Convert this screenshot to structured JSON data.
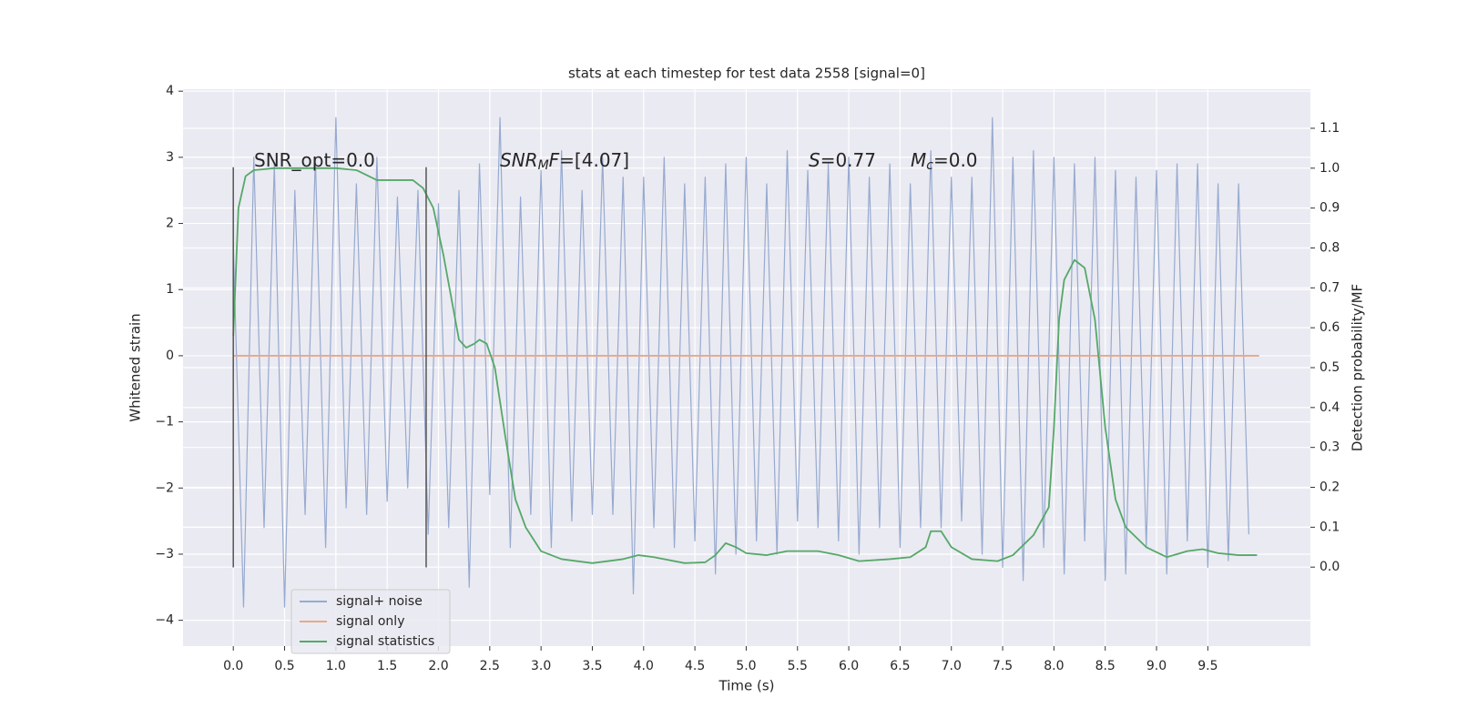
{
  "chart_data": {
    "type": "line",
    "title": "stats at each timestep for test data 2558 [signal=0]",
    "xlabel": "Time (s)",
    "ylabel": "Whitened strain",
    "y2label": "Detection probability/MF",
    "xlim": [
      -0.49,
      10.5
    ],
    "ylim": [
      -4.39,
      4.03
    ],
    "y2lim": [
      -0.198,
      1.198
    ],
    "xticks": [
      {
        "value": 0,
        "label": "0.0"
      },
      0.5,
      {
        "value": 1,
        "label": "1.0"
      },
      1.5,
      {
        "value": 2,
        "label": "2.0"
      },
      2.5,
      {
        "value": 3,
        "label": "3.0"
      },
      3.5,
      {
        "value": 4,
        "label": "4.0"
      },
      4.5,
      {
        "value": 5,
        "label": "5.0"
      },
      5.5,
      {
        "value": 6,
        "label": "6.0"
      },
      6.5,
      {
        "value": 7,
        "label": "7.0"
      },
      7.5,
      {
        "value": 8,
        "label": "8.0"
      },
      8.5,
      {
        "value": 9,
        "label": "9.0"
      },
      9.5
    ],
    "yticks": [
      {
        "value": -4,
        "label": "−4"
      },
      {
        "value": -3,
        "label": "−3"
      },
      {
        "value": -2,
        "label": "−2"
      },
      {
        "value": -1,
        "label": "−1"
      },
      0,
      1,
      2,
      3,
      4
    ],
    "y2ticks": [
      {
        "value": 0,
        "label": "0.0"
      },
      0.1,
      0.2,
      0.3,
      0.4,
      0.5,
      0.6,
      0.7,
      0.8,
      0.9,
      {
        "value": 1,
        "label": "1.0"
      },
      1.1
    ],
    "grid": true,
    "legend": "lower left",
    "series": [
      {
        "name": "signal+ noise",
        "color": "#97aad0",
        "x": [
          0,
          0.1,
          0.2,
          0.3,
          0.4,
          0.5,
          0.6,
          0.7,
          0.8,
          0.9,
          1,
          1.1,
          1.2,
          1.3,
          1.4,
          1.5,
          1.6,
          1.7,
          1.8,
          1.9,
          2,
          2.1,
          2.2,
          2.3,
          2.4,
          2.5,
          2.6,
          2.7,
          2.8,
          2.9,
          3,
          3.1,
          3.2,
          3.3,
          3.4,
          3.5,
          3.6,
          3.7,
          3.8,
          3.9,
          4,
          4.1,
          4.2,
          4.3,
          4.4,
          4.5,
          4.6,
          4.7,
          4.8,
          4.9,
          5,
          5.1,
          5.2,
          5.3,
          5.4,
          5.5,
          5.6,
          5.7,
          5.8,
          5.9,
          6,
          6.1,
          6.2,
          6.3,
          6.4,
          6.5,
          6.6,
          6.7,
          6.8,
          6.9,
          7,
          7.1,
          7.2,
          7.3,
          7.4,
          7.5,
          7.6,
          7.7,
          7.8,
          7.9,
          8,
          8.1,
          8.2,
          8.3,
          8.4,
          8.5,
          8.6,
          8.7,
          8.8,
          8.9,
          9,
          9.1,
          9.2,
          9.3,
          9.4,
          9.5,
          9.6,
          9.7,
          9.8,
          9.9
        ],
        "values": [
          1.7,
          -3.8,
          3.0,
          -2.6,
          2.9,
          -3.8,
          2.5,
          -2.4,
          3.0,
          -2.9,
          3.6,
          -2.3,
          2.6,
          -2.4,
          3.0,
          -2.2,
          2.4,
          -2.0,
          2.5,
          -2.7,
          2.3,
          -2.6,
          2.5,
          -3.5,
          2.9,
          -2.1,
          3.6,
          -2.9,
          2.4,
          -2.4,
          2.8,
          -2.9,
          3.1,
          -2.5,
          2.5,
          -2.4,
          3.0,
          -2.4,
          2.7,
          -3.6,
          2.7,
          -2.6,
          3.0,
          -2.9,
          2.6,
          -2.8,
          2.7,
          -3.3,
          2.9,
          -3.0,
          3.0,
          -2.8,
          2.6,
          -3.0,
          3.1,
          -2.5,
          2.8,
          -2.6,
          2.9,
          -2.8,
          3.0,
          -3.0,
          2.7,
          -2.6,
          2.9,
          -2.9,
          2.6,
          -2.6,
          3.1,
          -2.6,
          2.7,
          -2.5,
          2.7,
          -3.0,
          3.6,
          -3.2,
          3.0,
          -3.4,
          3.1,
          -2.9,
          3.0,
          -3.3,
          2.9,
          -2.8,
          3.0,
          -3.4,
          2.8,
          -3.3,
          2.7,
          -2.9,
          2.8,
          -3.3,
          2.9,
          -2.8,
          2.9,
          -3.2,
          2.6,
          -3.1,
          2.6,
          -2.7
        ]
      },
      {
        "name": "signal only",
        "color": "#e8a88a",
        "x": [
          0,
          10
        ],
        "values": [
          0,
          0
        ]
      },
      {
        "name": "signal statistics",
        "color": "#55a868",
        "axis": "y2",
        "x": [
          0,
          0.05,
          0.12,
          0.2,
          0.4,
          0.6,
          0.8,
          1,
          1.2,
          1.4,
          1.6,
          1.75,
          1.85,
          1.95,
          2.05,
          2.15,
          2.2,
          2.27,
          2.35,
          2.4,
          2.47,
          2.55,
          2.65,
          2.75,
          2.85,
          3,
          3.2,
          3.5,
          3.8,
          3.95,
          4.1,
          4.4,
          4.6,
          4.7,
          4.8,
          4.9,
          5,
          5.2,
          5.4,
          5.7,
          5.9,
          6.1,
          6.4,
          6.6,
          6.75,
          6.8,
          6.9,
          7,
          7.2,
          7.45,
          7.6,
          7.8,
          7.95,
          8,
          8.05,
          8.1,
          8.2,
          8.3,
          8.4,
          8.5,
          8.6,
          8.7,
          8.9,
          9.1,
          9.3,
          9.45,
          9.6,
          9.8,
          9.98
        ],
        "values": [
          0.58,
          0.9,
          0.98,
          0.995,
          1,
          1,
          1,
          1,
          0.995,
          0.97,
          0.97,
          0.97,
          0.95,
          0.9,
          0.78,
          0.64,
          0.57,
          0.55,
          0.56,
          0.57,
          0.56,
          0.5,
          0.33,
          0.17,
          0.1,
          0.04,
          0.02,
          0.01,
          0.02,
          0.03,
          0.025,
          0.01,
          0.012,
          0.03,
          0.06,
          0.05,
          0.035,
          0.03,
          0.04,
          0.04,
          0.03,
          0.015,
          0.02,
          0.025,
          0.05,
          0.09,
          0.09,
          0.05,
          0.02,
          0.015,
          0.03,
          0.08,
          0.15,
          0.35,
          0.62,
          0.72,
          0.77,
          0.75,
          0.62,
          0.35,
          0.17,
          0.1,
          0.05,
          0.025,
          0.04,
          0.045,
          0.035,
          0.03,
          0.03
        ]
      }
    ],
    "vlines": {
      "x": [
        0,
        1.88
      ],
      "ymin": -3.2,
      "ymax": 2.85,
      "color": "#555555"
    },
    "annotations": [
      {
        "parts": [
          {
            "text": "SNR_opt=0.0"
          }
        ]
      },
      {
        "parts": [
          {
            "text": "SNR",
            "italic": true
          },
          {
            "text": "M",
            "italic": true,
            "sub": true
          },
          {
            "text": "F",
            "italic": true
          },
          {
            "text": "=[4.07]"
          }
        ]
      },
      {
        "parts": [
          {
            "text": "S",
            "italic": true
          },
          {
            "text": "=0.77"
          }
        ]
      },
      {
        "parts": [
          {
            "text": "M",
            "italic": true
          },
          {
            "text": "c",
            "italic": true,
            "sub": true
          },
          {
            "text": "=0.0"
          }
        ]
      }
    ]
  }
}
